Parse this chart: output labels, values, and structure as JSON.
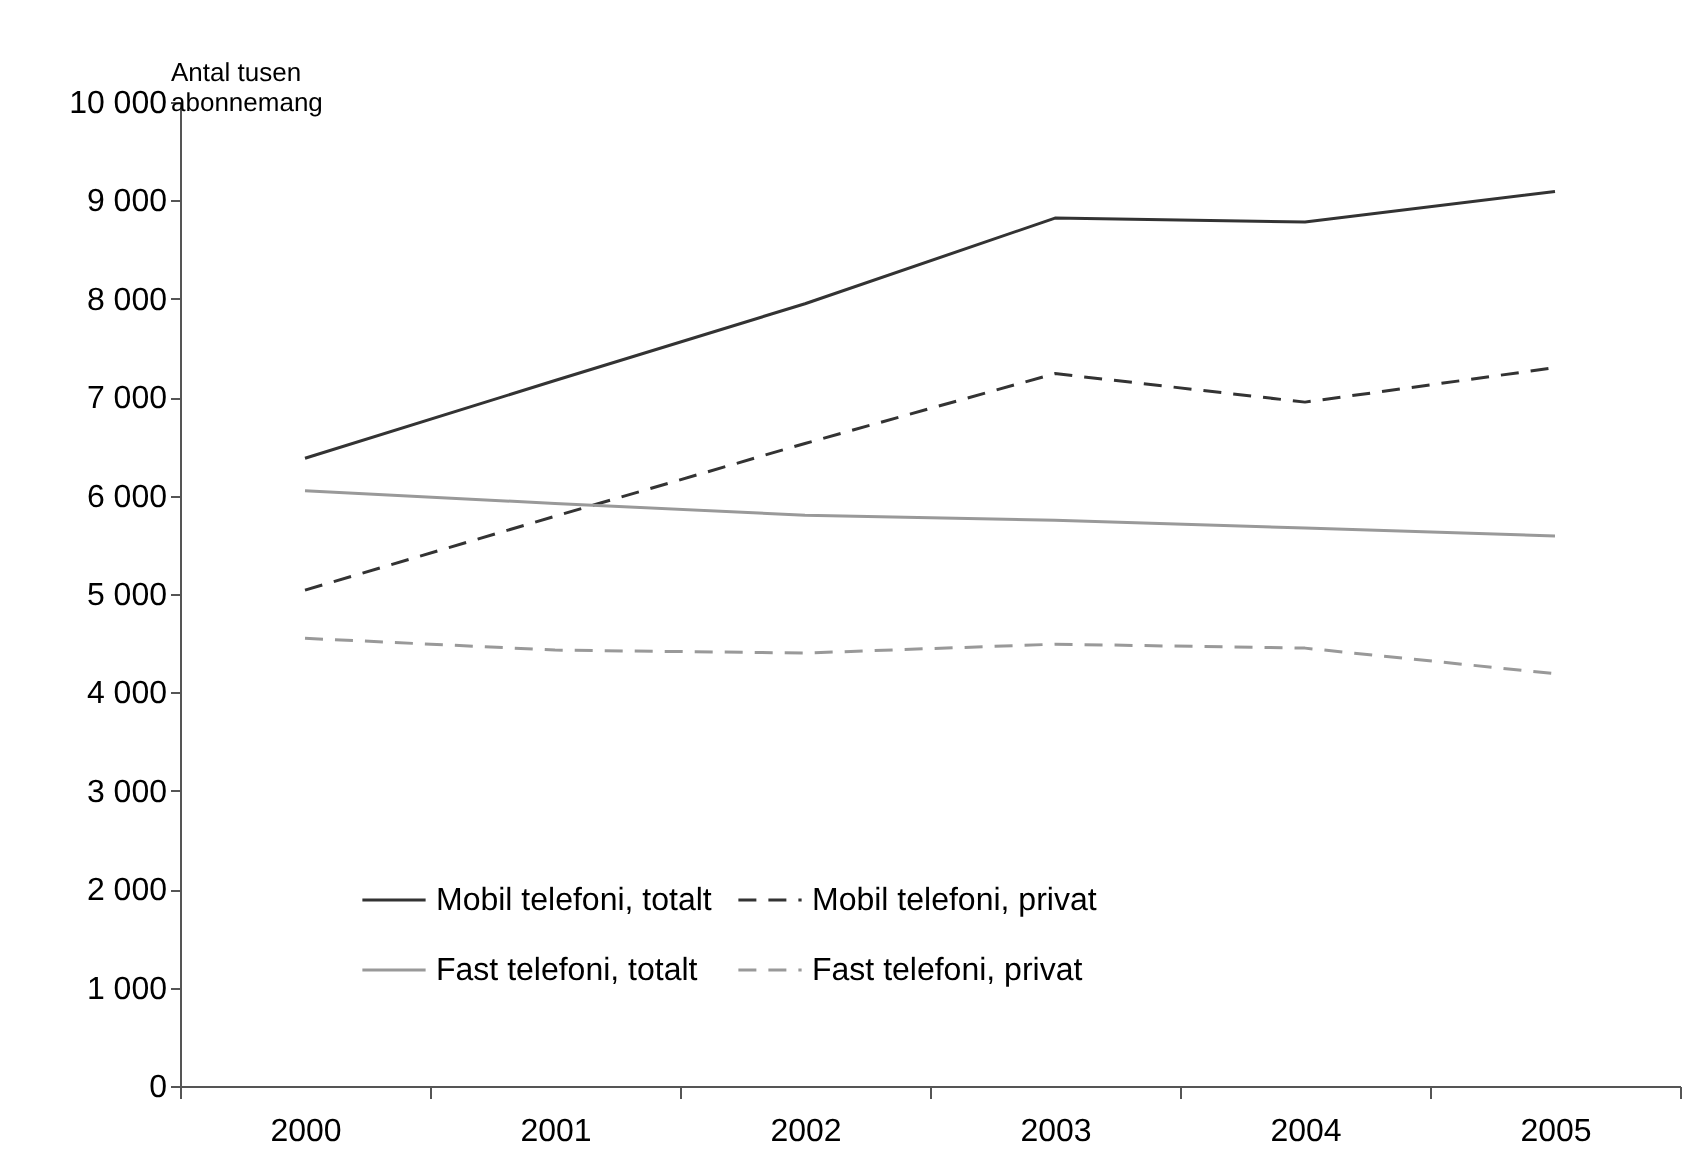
{
  "chart_data": {
    "type": "line",
    "ylabel": "Antal tusen abonnemang",
    "categories": [
      "2000",
      "2001",
      "2002",
      "2003",
      "2004",
      "2005"
    ],
    "series": [
      {
        "name": "Mobil telefoni, totalt",
        "color": "#333333",
        "line_style": "solid",
        "values": [
          6380,
          7170,
          7950,
          8820,
          8780,
          9090
        ]
      },
      {
        "name": "Mobil telefoni, privat",
        "color": "#333333",
        "line_style": "dashed",
        "values": [
          5040,
          5790,
          6530,
          7240,
          6950,
          7300
        ]
      },
      {
        "name": "Fast telefoni, totalt",
        "color": "#999999",
        "line_style": "solid",
        "values": [
          6050,
          5920,
          5800,
          5750,
          5670,
          5590
        ]
      },
      {
        "name": "Fast telefoni, privat",
        "color": "#999999",
        "line_style": "dashed",
        "values": [
          4550,
          4430,
          4400,
          4490,
          4450,
          4190
        ]
      }
    ],
    "ylim": [
      0,
      10000
    ],
    "yticks": [
      0,
      1000,
      2000,
      3000,
      4000,
      5000,
      6000,
      7000,
      8000,
      9000,
      10000
    ],
    "grid": false,
    "legend": "bottom",
    "marker": "none"
  }
}
